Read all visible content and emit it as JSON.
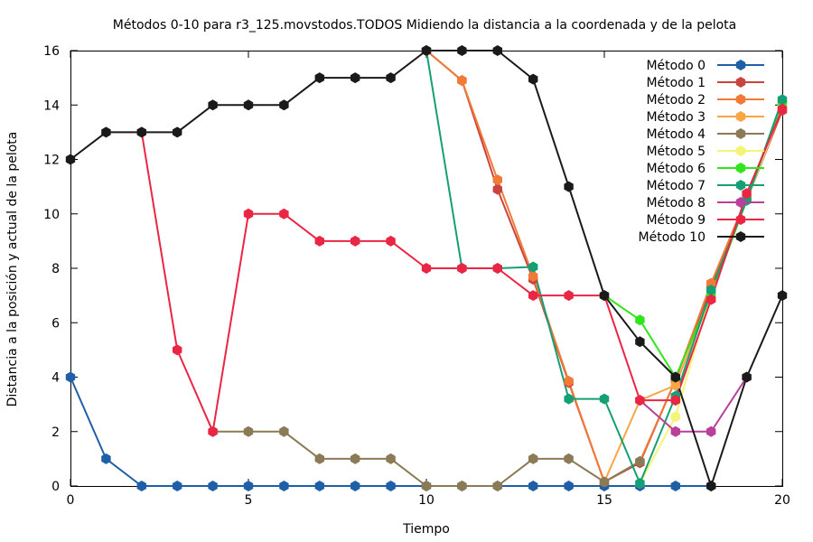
{
  "chart_data": {
    "type": "line",
    "title": "Métodos 0-10 para r3_125.movstodos.TODOS Midiendo la distancia a la coordenada y de la pelota",
    "xlabel": "Tiempo",
    "ylabel": "Distancia a la posición y actual de la pelota",
    "xlim": [
      0,
      20
    ],
    "ylim": [
      0,
      16
    ],
    "xticks": [
      0,
      5,
      10,
      15,
      20
    ],
    "yticks": [
      0,
      2,
      4,
      6,
      8,
      10,
      12,
      14,
      16
    ],
    "grid": false,
    "legend": "top-right",
    "series": [
      {
        "name": "Método 0",
        "color": "#1f5fa8",
        "x": [
          0,
          1,
          2,
          3,
          4,
          5,
          6,
          7,
          8,
          9,
          10,
          11,
          12,
          13,
          14,
          15,
          16,
          17,
          18
        ],
        "y": [
          4,
          1,
          0,
          0,
          0,
          0,
          0,
          0,
          0,
          0,
          0,
          0,
          0,
          0,
          0,
          0,
          0,
          0,
          0
        ]
      },
      {
        "name": "Método 1",
        "color": "#c8443e",
        "x": [
          10,
          11,
          12,
          13,
          14,
          15,
          16,
          17,
          18,
          19,
          20
        ],
        "y": [
          16,
          14.9,
          10.9,
          7.6,
          3.8,
          0.15,
          0.85,
          3.9,
          7.3,
          10.5,
          13.8
        ]
      },
      {
        "name": "Método 2",
        "color": "#f07a36",
        "x": [
          10,
          11,
          12,
          13,
          14,
          15,
          16,
          17,
          18,
          19,
          20
        ],
        "y": [
          16,
          14.9,
          11.25,
          7.7,
          3.85,
          0.15,
          0.9,
          3.9,
          7.45,
          10.6,
          13.9
        ]
      },
      {
        "name": "Método 3",
        "color": "#f7a545",
        "x": [
          15,
          16,
          17,
          18,
          19,
          20
        ],
        "y": [
          0.15,
          3.15,
          3.7,
          7.0,
          10.6,
          13.9
        ]
      },
      {
        "name": "Método 4",
        "color": "#8a7a55",
        "x": [
          4,
          5,
          6,
          7,
          8,
          9,
          10,
          11,
          12,
          13,
          14,
          15,
          16
        ],
        "y": [
          2,
          2,
          2,
          1,
          1,
          1,
          0,
          0,
          0,
          1,
          1,
          0.15,
          0.9
        ]
      },
      {
        "name": "Método 5",
        "color": "#f4f478",
        "x": [
          16,
          17,
          18,
          19,
          20
        ],
        "y": [
          0.1,
          2.55,
          7.1,
          10.5,
          13.9
        ]
      },
      {
        "name": "Método 6",
        "color": "#2ee61b",
        "x": [
          15,
          16,
          17,
          18,
          19,
          20
        ],
        "y": [
          7.0,
          6.1,
          4.0,
          7.0,
          10.5,
          14.1
        ]
      },
      {
        "name": "Método 7",
        "color": "#159f74",
        "x": [
          10,
          11,
          12,
          13,
          14,
          15,
          16,
          17,
          18,
          19,
          20
        ],
        "y": [
          16,
          8,
          8,
          8.05,
          3.2,
          3.2,
          0.1,
          3.3,
          7.2,
          10.5,
          14.2
        ]
      },
      {
        "name": "Método 8",
        "color": "#b93f9b",
        "x": [
          16,
          17,
          18,
          19
        ],
        "y": [
          3.15,
          2,
          2,
          4
        ]
      },
      {
        "name": "Método 9",
        "color": "#ea2645",
        "x": [
          2,
          3,
          4,
          5,
          6,
          7,
          8,
          9,
          10,
          11,
          12,
          13,
          14,
          15,
          16,
          17,
          18,
          19,
          20
        ],
        "y": [
          13,
          5,
          2,
          10,
          10,
          9,
          9,
          9,
          8,
          8,
          8,
          7,
          7,
          7,
          3.15,
          3.15,
          6.85,
          10.75,
          13.85
        ]
      },
      {
        "name": "Método 10",
        "color": "#1a1a1a",
        "x": [
          0,
          1,
          2,
          3,
          4,
          5,
          6,
          7,
          8,
          9,
          10,
          11,
          12,
          13,
          14,
          15,
          16,
          17,
          18,
          19,
          20
        ],
        "y": [
          12,
          13,
          13,
          13,
          14,
          14,
          14,
          15,
          15,
          15,
          16,
          16,
          16,
          14.95,
          11,
          7,
          5.3,
          4,
          0,
          4,
          7
        ]
      }
    ]
  }
}
